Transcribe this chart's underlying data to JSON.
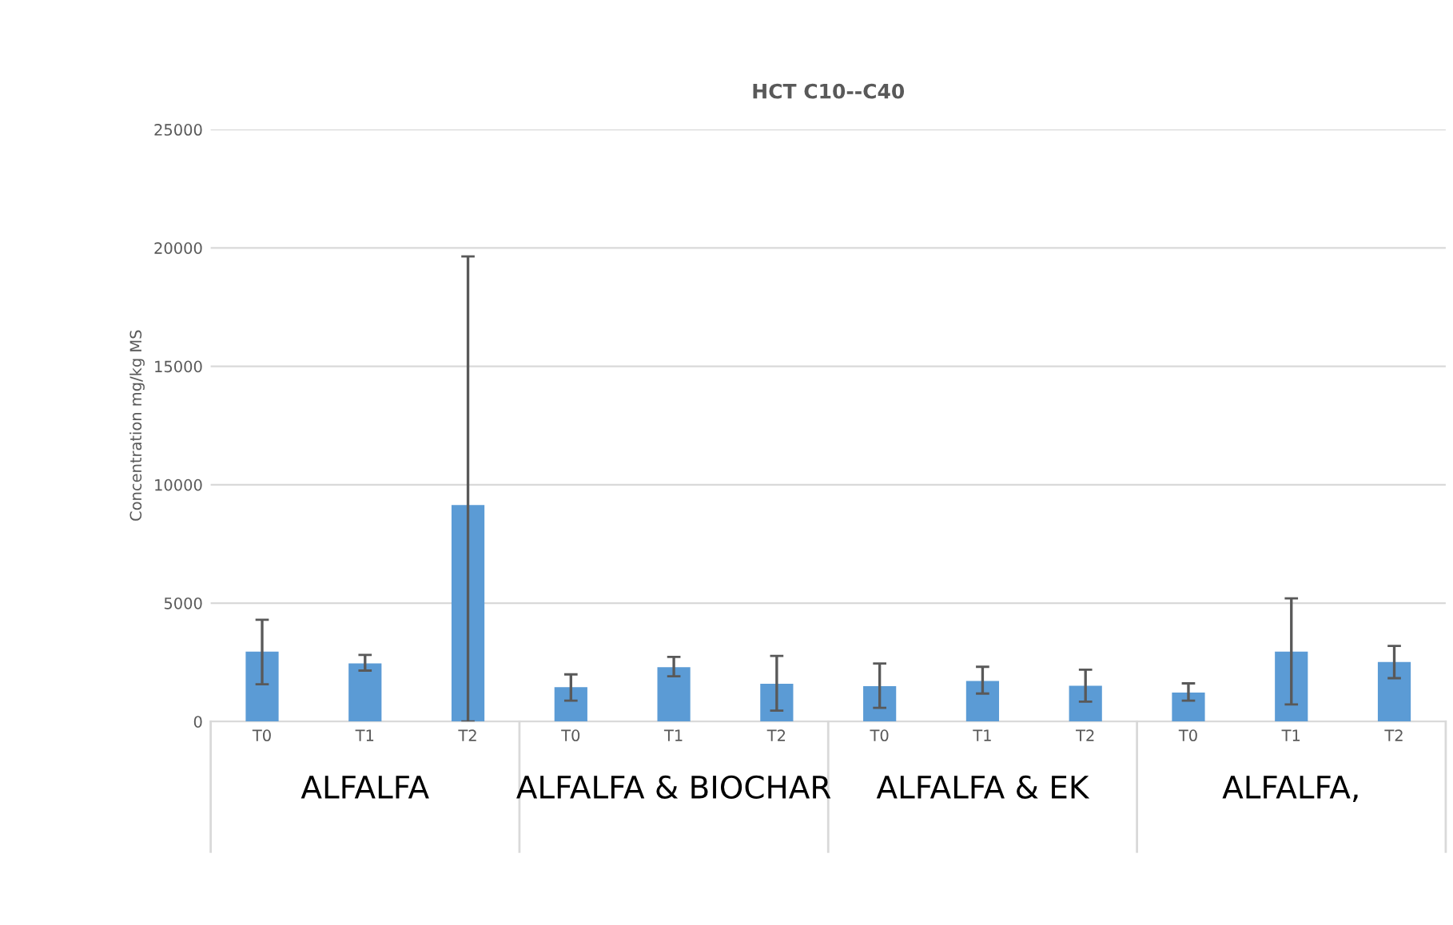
{
  "chart_data": {
    "type": "bar",
    "title": "HCT C10--C40",
    "ylabel": "Concentration mg/kg MS",
    "categories": [
      "T0",
      "T1",
      "T2",
      "T0",
      "T1",
      "T2",
      "T0",
      "T1",
      "T2",
      "T0",
      "T1",
      "T2"
    ],
    "values": [
      2950,
      2450,
      9140,
      1450,
      2290,
      1590,
      1490,
      1710,
      1510,
      1220,
      2950,
      2510
    ],
    "errors": [
      [
        1570,
        4300
      ],
      [
        2150,
        2810
      ],
      [
        0,
        19640
      ],
      [
        880,
        1990
      ],
      [
        1910,
        2730
      ],
      [
        460,
        2770
      ],
      [
        580,
        2450
      ],
      [
        1180,
        2310
      ],
      [
        840,
        2190
      ],
      [
        880,
        1610
      ],
      [
        720,
        5200
      ],
      [
        1830,
        3190
      ]
    ],
    "color": "#5b9bd5",
    "ylim": [
      0,
      25000
    ],
    "yticks": [
      0,
      5000,
      10000,
      15000,
      20000,
      25000
    ],
    "grid": "y",
    "legend": false,
    "annotations": [
      "ALFALFA",
      "ALFALFA & BIOCHAR",
      "ALFALFA & EK",
      "ALFALFA,"
    ]
  }
}
